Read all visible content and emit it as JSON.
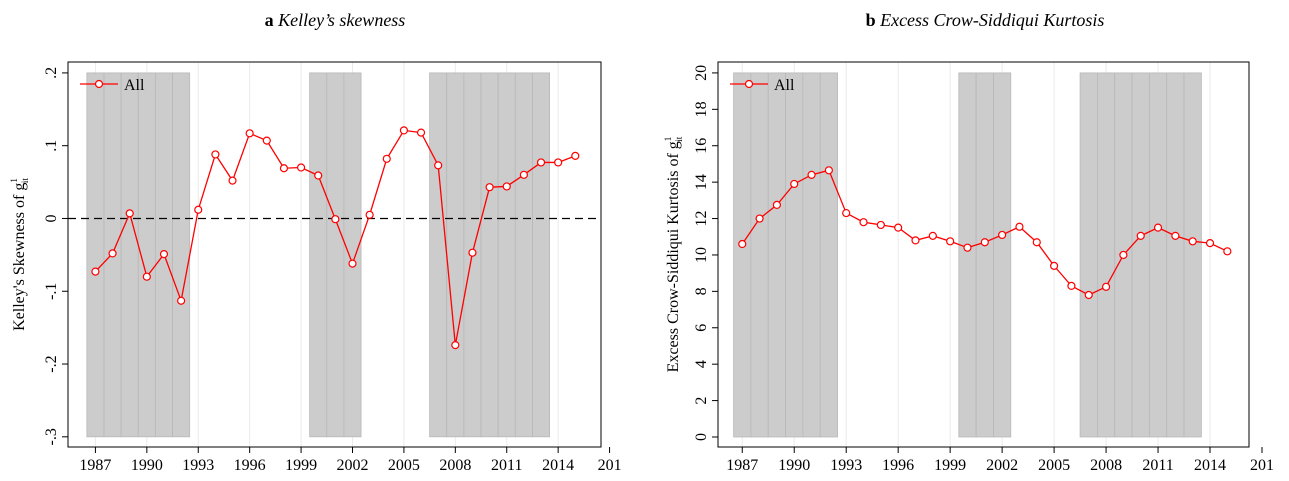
{
  "chart_data": [
    {
      "type": "line",
      "label": "a",
      "title": "Kelley’s skewness",
      "y_label": "Kelley's Skewness of g",
      "y_label_sup": "1",
      "y_label_sub": "it",
      "x": [
        1987,
        1988,
        1989,
        1990,
        1991,
        1992,
        1993,
        1994,
        1995,
        1996,
        1997,
        1998,
        1999,
        2000,
        2001,
        2002,
        2003,
        2004,
        2005,
        2006,
        2007,
        2008,
        2009,
        2010,
        2011,
        2012,
        2013,
        2014,
        2015
      ],
      "series": [
        {
          "name": "All",
          "color": "#ff0000",
          "values": [
            -0.073,
            -0.048,
            0.007,
            -0.08,
            -0.049,
            -0.113,
            0.012,
            0.088,
            0.052,
            0.117,
            0.107,
            0.069,
            0.07,
            0.059,
            -0.001,
            -0.062,
            0.005,
            0.082,
            0.121,
            0.118,
            0.073,
            -0.174,
            -0.047,
            0.043,
            0.044,
            0.06,
            0.077,
            0.077,
            0.086
          ]
        }
      ],
      "xlim": [
        1985.4,
        2016.5
      ],
      "xticks": [
        1987,
        1990,
        1993,
        1996,
        1999,
        2002,
        2005,
        2008,
        2011,
        2014,
        {
          "value": 2017,
          "label": "201"
        }
      ],
      "ylim": [
        -0.314,
        0.215
      ],
      "yticks": [
        {
          "value": -0.3,
          "label": "-.3"
        },
        {
          "value": -0.2,
          "label": "-.2"
        },
        {
          "value": -0.1,
          "label": "-.1"
        },
        0,
        {
          "value": 0.1,
          "label": ".1"
        },
        {
          "value": 0.2,
          "label": ".2"
        }
      ],
      "reference_line": 0,
      "xgrid": true,
      "legend": "top-left",
      "shaded_years": [
        1987,
        1988,
        1989,
        1990,
        1991,
        1992,
        2000,
        2001,
        2002,
        2007,
        2008,
        2009,
        2010,
        2011,
        2012,
        2013
      ]
    },
    {
      "type": "line",
      "label": "b",
      "title": "Excess Crow-Siddiqui Kurtosis",
      "y_label": "Excess Crow-Siddiqui Kurtosis of g",
      "y_label_sup": "1",
      "y_label_sub": "it",
      "x": [
        1987,
        1988,
        1989,
        1990,
        1991,
        1992,
        1993,
        1994,
        1995,
        1996,
        1997,
        1998,
        1999,
        2000,
        2001,
        2002,
        2003,
        2004,
        2005,
        2006,
        2007,
        2008,
        2009,
        2010,
        2011,
        2012,
        2013,
        2014,
        2015
      ],
      "series": [
        {
          "name": "All",
          "color": "#ff0000",
          "values": [
            10.6,
            12.0,
            12.75,
            13.9,
            14.4,
            14.65,
            12.3,
            11.8,
            11.65,
            11.5,
            10.8,
            11.05,
            10.75,
            10.4,
            10.7,
            11.1,
            11.55,
            10.7,
            9.4,
            8.3,
            7.8,
            8.25,
            10.0,
            11.05,
            11.5,
            11.05,
            10.75,
            10.65,
            10.2
          ]
        }
      ],
      "xlim": [
        1985.6,
        2016.25
      ],
      "xticks": [
        1987,
        1990,
        1993,
        1996,
        1999,
        2002,
        2005,
        2008,
        2011,
        2014,
        {
          "value": 2017,
          "label": "201"
        }
      ],
      "ylim": [
        -0.55,
        20.6
      ],
      "yticks": [
        0,
        2,
        4,
        6,
        8,
        10,
        12,
        14,
        16,
        18,
        20
      ],
      "xgrid": true,
      "legend": "top-left",
      "shaded_years": [
        1987,
        1988,
        1989,
        1990,
        1991,
        1992,
        2000,
        2001,
        2002,
        2007,
        2008,
        2009,
        2010,
        2011,
        2012,
        2013
      ]
    }
  ]
}
